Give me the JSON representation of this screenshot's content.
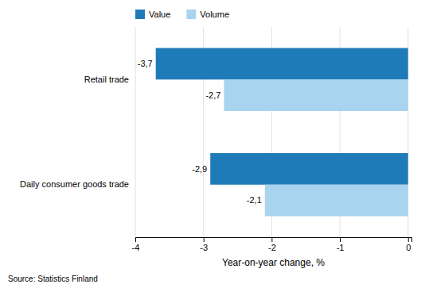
{
  "chart_data": {
    "type": "bar",
    "orientation": "horizontal",
    "categories": [
      "Daily consumer goods trade",
      "Retail trade"
    ],
    "series": [
      {
        "name": "Value",
        "color": "#1F7BB8",
        "values": [
          -2.9,
          -3.7
        ],
        "value_labels": [
          "-2,9",
          "-3,7"
        ]
      },
      {
        "name": "Volume",
        "color": "#A8D4EF",
        "values": [
          -2.1,
          -2.7
        ],
        "value_labels": [
          "-2,1",
          "-2,7"
        ]
      }
    ],
    "xlabel": "Year-on-year change, %",
    "xlim": [
      -4,
      0.05
    ],
    "xticks": [
      -4,
      -3,
      -2,
      -1,
      0
    ],
    "grid": true,
    "legend": "top",
    "data_labels": true,
    "annotations": [
      "Source: Statistics Finland"
    ]
  }
}
